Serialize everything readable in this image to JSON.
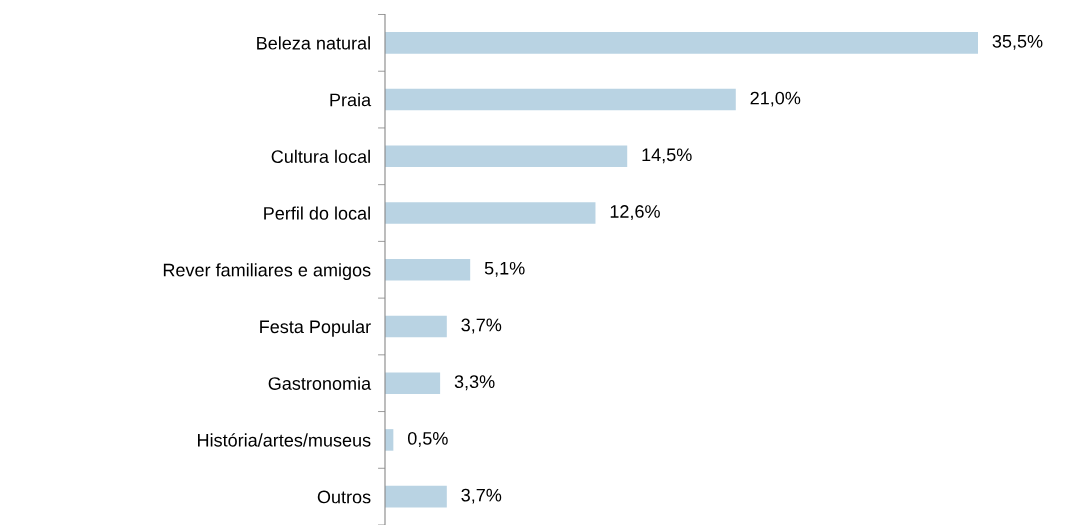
{
  "chart_data": {
    "type": "bar",
    "orientation": "horizontal",
    "categories": [
      "Beleza natural",
      "Praia",
      "Cultura local",
      "Perfil do local",
      "Rever familiares e amigos",
      "Festa Popular",
      "Gastronomia",
      "História/artes/museus",
      "Outros"
    ],
    "values": [
      35.5,
      21.0,
      14.5,
      12.6,
      5.1,
      3.7,
      3.3,
      0.5,
      3.7
    ],
    "value_labels": [
      "35,5%",
      "21,0%",
      "14,5%",
      "12,6%",
      "5,1%",
      "3,7%",
      "3,3%",
      "0,5%",
      "3,7%"
    ],
    "color": "#b9d3e3",
    "grid": false,
    "legend": false
  }
}
